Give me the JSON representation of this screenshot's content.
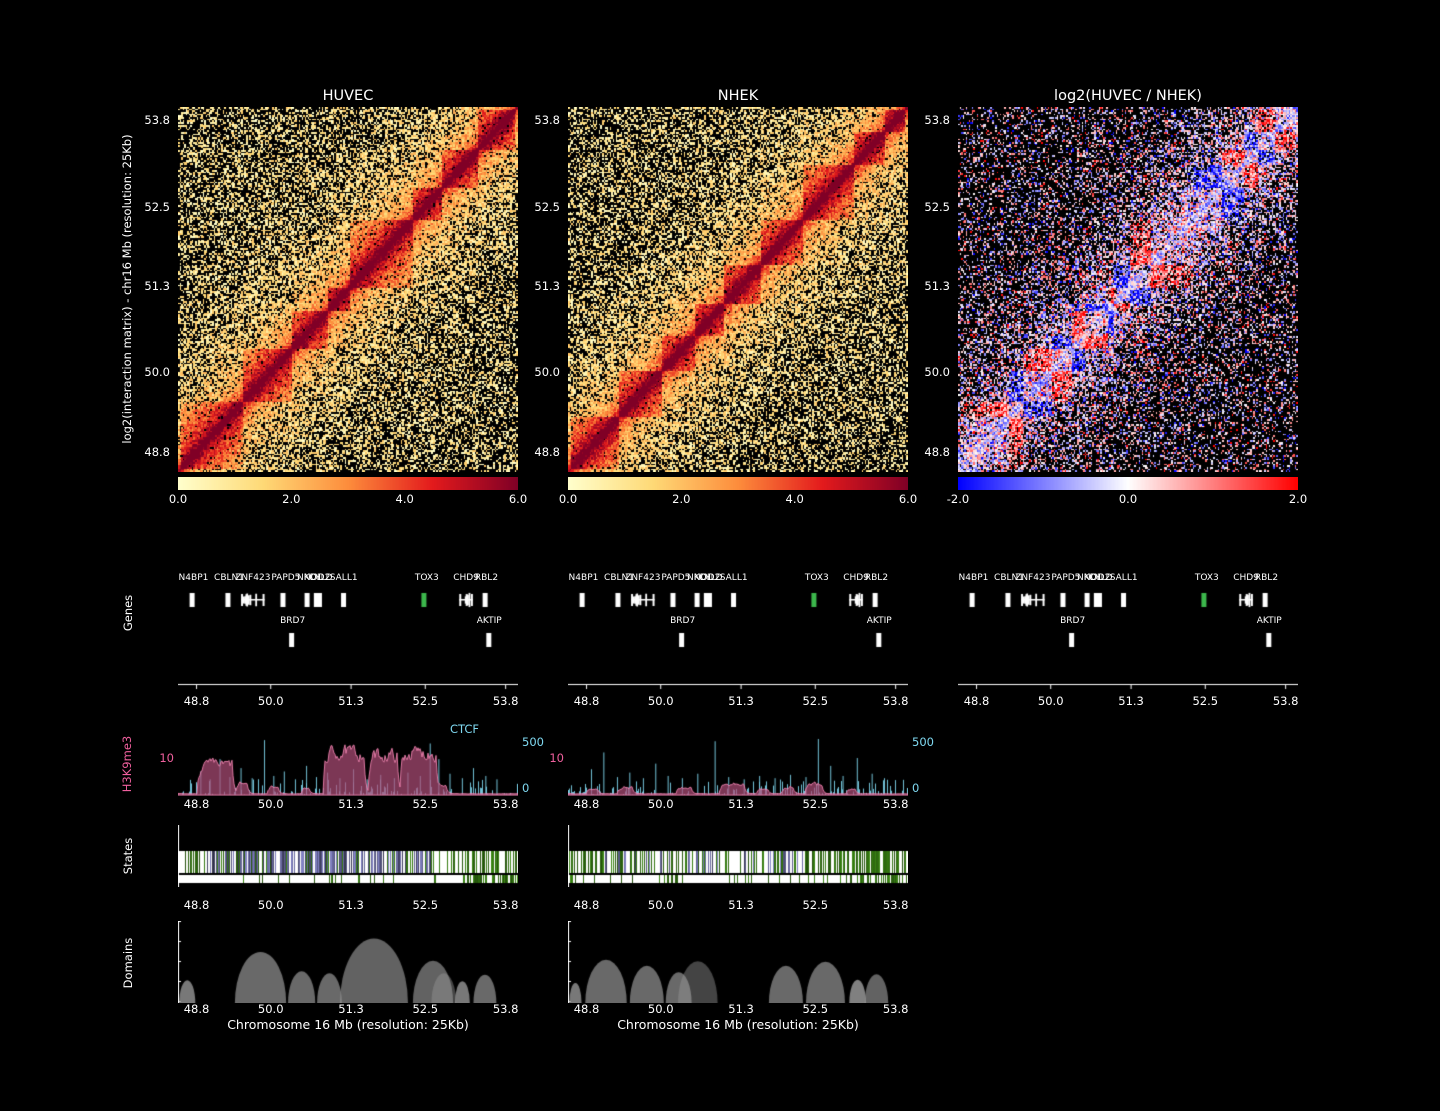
{
  "figure": {
    "axis_title_y": "log2(interaction matrix) - chr16 Mb (resolution: 25Kb)",
    "axis_title_x": "Chromosome 16 Mb (resolution: 25Kb)",
    "background": "#000000",
    "text_color": "#ffffff"
  },
  "chart_data": {
    "type": "heatmap",
    "region_label": "chr16",
    "resolution": "25Kb",
    "x_range_mb": [
      48.5,
      54.0
    ],
    "axis_ticks_mb": [
      48.8,
      50.0,
      51.3,
      52.5,
      53.8
    ],
    "axis_tick_labels": [
      "48.8",
      "50.0",
      "51.3",
      "52.5",
      "53.8"
    ],
    "y_tick_labels": [
      "53.8",
      "52.5",
      "51.3",
      "50.0",
      "48.8"
    ],
    "matrix_bins": 220,
    "colormaps": {
      "ylorrd": [
        "#ffffcc",
        "#fed976",
        "#fd8d3c",
        "#e31a1c",
        "#800026"
      ],
      "bwr": [
        "#0000ff",
        "#ffffff",
        "#ff0000"
      ]
    },
    "heatmap_panels": [
      {
        "title": "HUVEC",
        "colormap": "ylorrd",
        "vmin": 0,
        "vmax": 6,
        "colorbar_ticks": [
          "0.0",
          "2.0",
          "4.0",
          "6.0"
        ],
        "seed": 101,
        "tads": [
          [
            48.55,
            49.55
          ],
          [
            49.55,
            50.35
          ],
          [
            50.35,
            50.92
          ],
          [
            50.92,
            51.28
          ],
          [
            51.28,
            52.3
          ],
          [
            52.3,
            52.78
          ],
          [
            52.78,
            53.35
          ],
          [
            53.35,
            53.95
          ]
        ]
      },
      {
        "title": "NHEK",
        "colormap": "ylorrd",
        "vmin": 0,
        "vmax": 6,
        "colorbar_ticks": [
          "0.0",
          "2.0",
          "4.0",
          "6.0"
        ],
        "seed": 202,
        "tads": [
          [
            48.55,
            49.32
          ],
          [
            49.32,
            50.02
          ],
          [
            50.02,
            50.56
          ],
          [
            50.56,
            51.02
          ],
          [
            51.02,
            51.62
          ],
          [
            51.62,
            52.3
          ],
          [
            52.3,
            53.12
          ],
          [
            53.12,
            53.62
          ],
          [
            53.62,
            53.95
          ]
        ]
      },
      {
        "title": "log2(HUVEC / NHEK)",
        "colormap": "bwr",
        "vmin": -2,
        "vmax": 2,
        "colorbar_ticks": [
          "-2.0",
          "0.0",
          "2.0"
        ],
        "seed": 303,
        "ratio_of": [
          0,
          1
        ]
      }
    ]
  },
  "genes": {
    "track_label": "Genes",
    "gene_color_default": "#ffffff",
    "highlight_color": "#3cb84c",
    "rows": [
      {
        "genes": [
          {
            "name": "N4BP1",
            "start": 48.72,
            "end": 48.78
          },
          {
            "name": "CBLN1",
            "start": 49.3,
            "end": 49.35
          },
          {
            "name": "ZNF423",
            "start": 49.52,
            "end": 49.9
          },
          {
            "name": "PAPD5",
            "start": 50.19,
            "end": 50.3
          },
          {
            "name": "NKD1",
            "start": 50.58,
            "end": 50.68
          },
          {
            "name": "NOD2",
            "start": 50.73,
            "end": 50.77
          },
          {
            "name": "CYLD",
            "start": 50.78,
            "end": 50.84
          },
          {
            "name": "SALL1",
            "start": 51.17,
            "end": 51.19
          },
          {
            "name": "TOX3",
            "start": 52.47,
            "end": 52.58,
            "color": "#3cb84c"
          },
          {
            "name": "CHD9",
            "start": 53.05,
            "end": 53.27
          },
          {
            "name": "RBL2",
            "start": 53.46,
            "end": 53.52
          }
        ]
      },
      {
        "genes": [
          {
            "name": "BRD7",
            "start": 50.33,
            "end": 50.38
          },
          {
            "name": "AKTIP",
            "start": 53.52,
            "end": 53.55
          }
        ]
      }
    ]
  },
  "signal_track": {
    "left_label": "H3K9me3",
    "left_color": "#f0609e",
    "left_axis_tick": "10",
    "left_max": 12,
    "right_label": "CTCF",
    "right_color": "#7fd8f0",
    "right_axis_top": "500",
    "right_axis_bottom": "0",
    "right_max": 500,
    "area_fill": "rgba(172,76,118,0.72)",
    "area_stroke": "rgba(240,130,175,0.9)",
    "panels": [
      {
        "seed": 7,
        "h3k9me3_blocks": [
          [
            48.82,
            49.38,
            6.5
          ],
          [
            49.45,
            49.62,
            2.5
          ],
          [
            49.95,
            50.12,
            1.8
          ],
          [
            50.5,
            50.62,
            1.5
          ],
          [
            50.85,
            51.52,
            9.0
          ],
          [
            51.58,
            52.05,
            8.5
          ],
          [
            52.1,
            52.68,
            9.0
          ],
          [
            52.72,
            52.85,
            2.0
          ]
        ],
        "ctcf_peaks": [
          [
            48.87,
            210
          ],
          [
            49.02,
            140
          ],
          [
            49.18,
            320
          ],
          [
            49.34,
            160
          ],
          [
            49.52,
            240
          ],
          [
            49.7,
            150
          ],
          [
            49.9,
            490
          ],
          [
            50.05,
            170
          ],
          [
            50.22,
            210
          ],
          [
            50.4,
            140
          ],
          [
            50.58,
            260
          ],
          [
            50.74,
            160
          ],
          [
            50.92,
            200
          ],
          [
            51.12,
            150
          ],
          [
            51.34,
            230
          ],
          [
            51.56,
            140
          ],
          [
            51.78,
            180
          ],
          [
            52.0,
            150
          ],
          [
            52.22,
            200
          ],
          [
            52.42,
            170
          ],
          [
            52.58,
            460
          ],
          [
            52.72,
            320
          ],
          [
            52.9,
            190
          ],
          [
            53.1,
            150
          ],
          [
            53.28,
            240
          ],
          [
            53.48,
            170
          ],
          [
            53.66,
            140
          ]
        ]
      },
      {
        "seed": 8,
        "h3k9me3_blocks": [
          [
            48.8,
            49.0,
            1.2
          ],
          [
            49.3,
            49.55,
            1.6
          ],
          [
            50.25,
            50.5,
            1.4
          ],
          [
            50.95,
            51.35,
            2.2
          ],
          [
            51.55,
            51.75,
            1.3
          ],
          [
            51.95,
            52.15,
            1.6
          ],
          [
            52.35,
            52.62,
            2.4
          ],
          [
            53.0,
            53.15,
            1.2
          ]
        ],
        "ctcf_peaks": [
          [
            48.88,
            230
          ],
          [
            49.08,
            380
          ],
          [
            49.3,
            160
          ],
          [
            49.5,
            200
          ],
          [
            49.72,
            150
          ],
          [
            49.92,
            280
          ],
          [
            50.12,
            170
          ],
          [
            50.35,
            150
          ],
          [
            50.6,
            190
          ],
          [
            50.88,
            480
          ],
          [
            51.1,
            160
          ],
          [
            51.35,
            140
          ],
          [
            51.6,
            170
          ],
          [
            51.85,
            150
          ],
          [
            52.1,
            180
          ],
          [
            52.35,
            160
          ],
          [
            52.55,
            500
          ],
          [
            52.75,
            260
          ],
          [
            52.95,
            170
          ],
          [
            53.18,
            330
          ],
          [
            53.42,
            190
          ],
          [
            53.62,
            150
          ]
        ]
      }
    ]
  },
  "states_track": {
    "track_label": "States",
    "colors": {
      "purple": "#8f8fd8",
      "green": "#3c8a14",
      "white": "#ffffff"
    },
    "panels": [
      {
        "seed": 41,
        "rows": [
          {
            "segments": [
              {
                "range": [
                  48.5,
                  48.95
                ],
                "weights": {
                  "green": 0.45,
                  "white": 0.55
                }
              },
              {
                "range": [
                  48.95,
                  52.62
                ],
                "weights": {
                  "purple": 0.52,
                  "white": 0.33,
                  "green": 0.15
                }
              },
              {
                "range": [
                  52.62,
                  54.0
                ],
                "weights": {
                  "green": 0.4,
                  "white": 0.6
                }
              }
            ]
          },
          {
            "segments": [
              {
                "range": [
                  48.5,
                  53.1
                ],
                "weights": {
                  "white": 0.92,
                  "green": 0.08
                }
              },
              {
                "range": [
                  53.1,
                  54.0
                ],
                "weights": {
                  "green": 0.6,
                  "white": 0.4
                }
              }
            ]
          }
        ]
      },
      {
        "seed": 42,
        "rows": [
          {
            "segments": [
              {
                "range": [
                  48.5,
                  49.05
                ],
                "weights": {
                  "green": 0.5,
                  "white": 0.5
                }
              },
              {
                "range": [
                  49.05,
                  52.35
                ],
                "weights": {
                  "white": 0.55,
                  "green": 0.28,
                  "purple": 0.17
                }
              },
              {
                "range": [
                  52.35,
                  54.0
                ],
                "weights": {
                  "green": 0.55,
                  "white": 0.45
                }
              }
            ]
          },
          {
            "segments": [
              {
                "range": [
                  48.5,
                  53.0
                ],
                "weights": {
                  "white": 0.9,
                  "green": 0.1
                }
              },
              {
                "range": [
                  53.0,
                  54.0
                ],
                "weights": {
                  "green": 0.5,
                  "white": 0.5
                }
              }
            ]
          }
        ]
      }
    ]
  },
  "domains_track": {
    "track_label": "Domains",
    "fill": "#969696",
    "panels": [
      {
        "arcs": [
          [
            48.52,
            48.78,
            0.8
          ],
          [
            49.42,
            50.25,
            0.7
          ],
          [
            50.28,
            50.72,
            0.7
          ],
          [
            50.75,
            51.15,
            0.7
          ],
          [
            51.12,
            52.22,
            0.65
          ],
          [
            52.3,
            52.95,
            0.65
          ],
          [
            52.6,
            53.0,
            0.45
          ],
          [
            52.98,
            53.22,
            0.8
          ],
          [
            53.28,
            53.65,
            0.7
          ]
        ]
      },
      {
        "arcs": [
          [
            48.52,
            48.72,
            0.8
          ],
          [
            48.78,
            49.45,
            0.7
          ],
          [
            49.5,
            50.05,
            0.7
          ],
          [
            50.08,
            50.5,
            0.7
          ],
          [
            50.28,
            50.92,
            0.45
          ],
          [
            51.75,
            52.3,
            0.7
          ],
          [
            52.35,
            52.98,
            0.7
          ],
          [
            53.05,
            53.32,
            0.85
          ],
          [
            53.3,
            53.68,
            0.65
          ]
        ]
      }
    ]
  }
}
